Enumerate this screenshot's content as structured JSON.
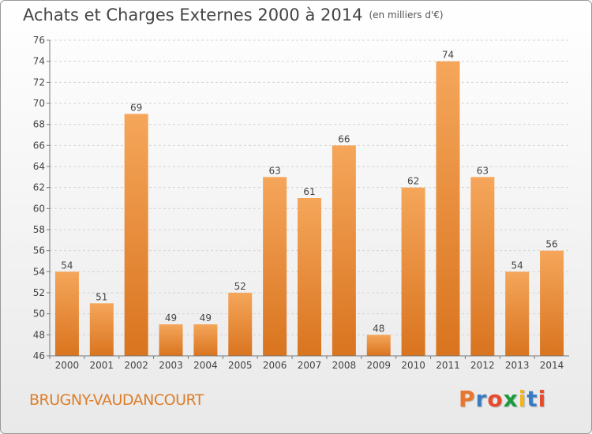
{
  "title": "Achats et Charges Externes 2000 à 2014",
  "subtitle": "(en milliers d'€)",
  "commune": "BRUGNY-VAUDANCOURT",
  "logo": {
    "text": "Proxiti",
    "colors": [
      "#e8762c",
      "#3a7cc4",
      "#e84a2c",
      "#1a9c3c",
      "#f2b51e",
      "#3a7cc4",
      "#e84a2c"
    ]
  },
  "chart_data": {
    "type": "bar",
    "categories": [
      "2000",
      "2001",
      "2002",
      "2003",
      "2004",
      "2005",
      "2006",
      "2007",
      "2008",
      "2009",
      "2010",
      "2011",
      "2012",
      "2013",
      "2014"
    ],
    "values": [
      54,
      51,
      69,
      49,
      49,
      52,
      63,
      61,
      66,
      48,
      62,
      74,
      63,
      54,
      56
    ],
    "ylim": [
      46,
      76
    ],
    "yticks": [
      46,
      48,
      50,
      52,
      54,
      56,
      58,
      60,
      62,
      64,
      66,
      68,
      70,
      72,
      74,
      76
    ],
    "grid": true,
    "bar_color_top": "#f5a65a",
    "bar_color_bottom": "#d9741f"
  }
}
